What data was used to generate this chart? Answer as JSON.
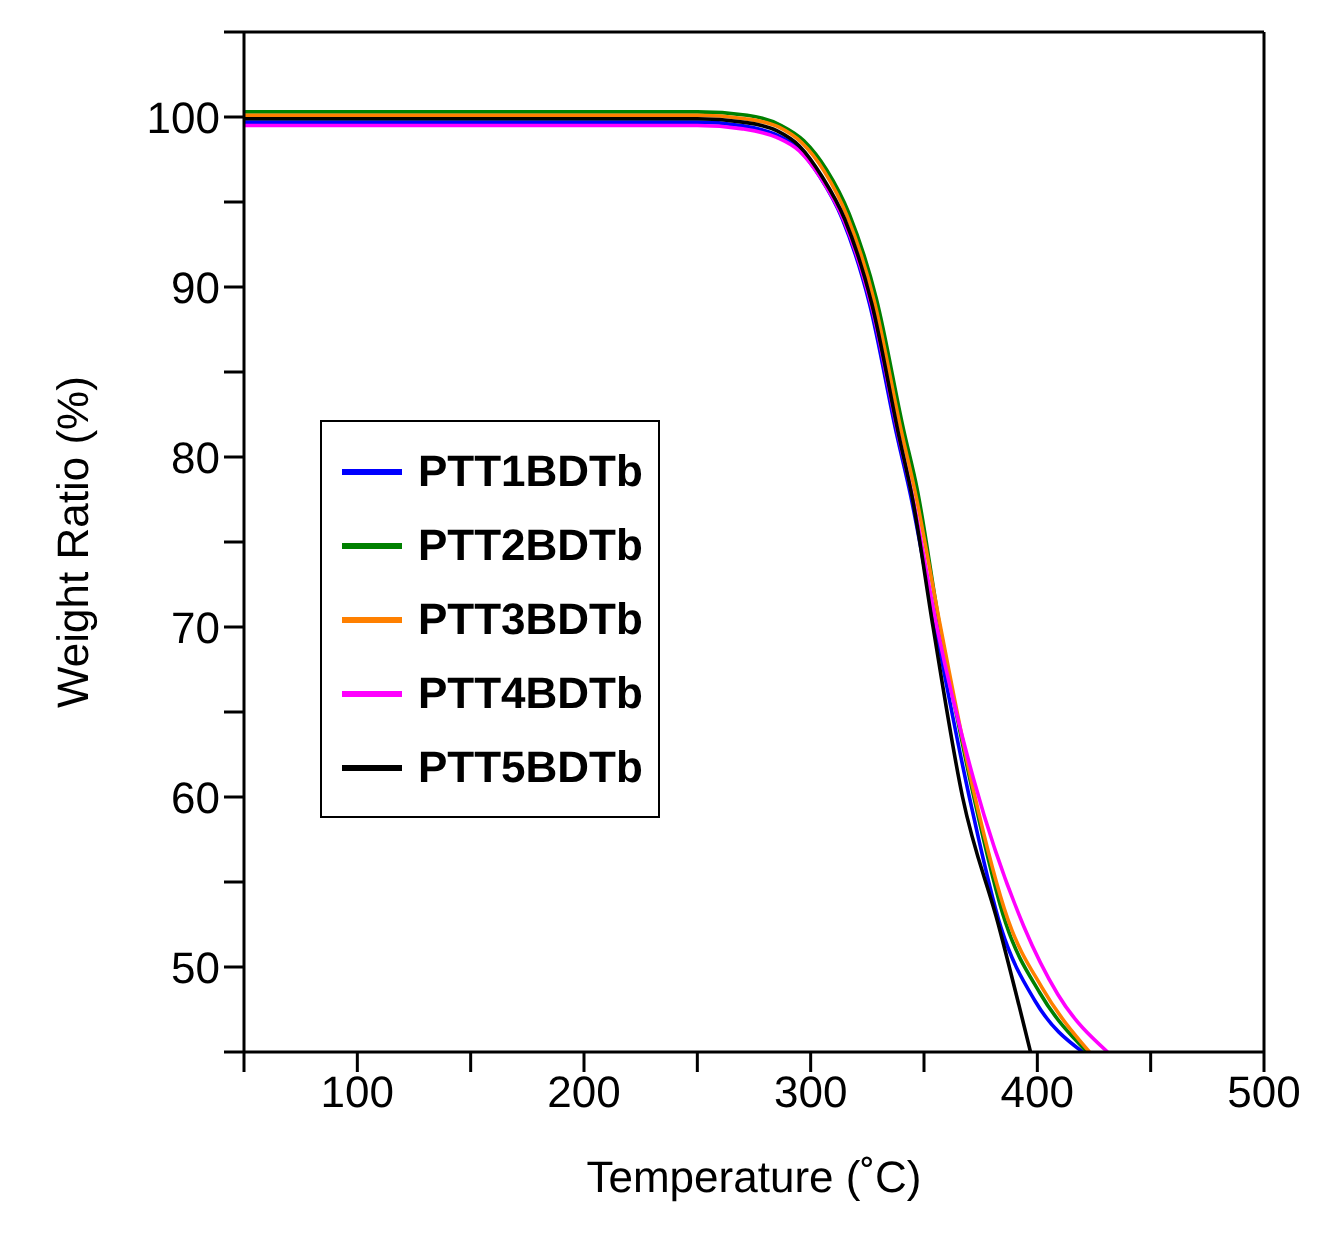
{
  "chart_data": {
    "type": "line",
    "xlabel": "Temperature (˚C)",
    "ylabel": "Weight Ratio (%)",
    "xlim": [
      50,
      500
    ],
    "ylim": [
      45,
      105
    ],
    "xticks": [
      {
        "value": 50,
        "label": null
      },
      100,
      {
        "value": 150,
        "label": null
      },
      200,
      {
        "value": 250,
        "label": null
      },
      300,
      {
        "value": 350,
        "label": null
      },
      400,
      {
        "value": 450,
        "label": null
      },
      500
    ],
    "yticks": [
      {
        "value": 45,
        "label": null
      },
      50,
      {
        "value": 55,
        "label": null
      },
      60,
      {
        "value": 65,
        "label": null
      },
      70,
      {
        "value": 75,
        "label": null
      },
      80,
      {
        "value": 85,
        "label": null
      },
      90,
      {
        "value": 95,
        "label": null
      },
      100,
      {
        "value": 105,
        "label": null
      }
    ],
    "legend": "left",
    "marker": "none",
    "line_style": "solid",
    "series": [
      {
        "name": "PTT1BDTb",
        "color": "#0000ff",
        "x": [
          50,
          150,
          250,
          269,
          284,
          294,
          304,
          314,
          326,
          338,
          344,
          355,
          370,
          384,
          399,
          420
        ],
        "values": [
          99.7,
          99.7,
          99.7,
          99.5,
          99,
          98.2,
          96.5,
          94,
          89,
          81.3,
          77.8,
          70,
          60,
          52.3,
          48,
          45
        ]
      },
      {
        "name": "PTT2BDTb",
        "color": "#008000",
        "x": [
          50,
          150,
          250,
          272,
          287,
          297,
          307,
          317,
          329,
          341,
          347,
          357,
          372,
          386,
          401,
          422
        ],
        "values": [
          100.3,
          100.3,
          100.3,
          100.1,
          99.5,
          98.6,
          96.9,
          94.3,
          89.3,
          81.6,
          78.1,
          70,
          60,
          52.6,
          48.5,
          45
        ]
      },
      {
        "name": "PTT3BDTb",
        "color": "#ff8000",
        "x": [
          50,
          150,
          250,
          271,
          286,
          296,
          306,
          316,
          328,
          340,
          346,
          357,
          372,
          387,
          402,
          423
        ],
        "values": [
          100.1,
          100.1,
          100.1,
          99.9,
          99.4,
          98.5,
          96.8,
          94.2,
          89.2,
          81.5,
          78,
          70.2,
          60.3,
          52.8,
          48.8,
          45
        ]
      },
      {
        "name": "PTT4BDTb",
        "color": "#ff00ff",
        "x": [
          50,
          150,
          250,
          270,
          285,
          295,
          305,
          315,
          327,
          339,
          345,
          356,
          372,
          394,
          409,
          431
        ],
        "values": [
          99.5,
          99.5,
          99.5,
          99.3,
          98.8,
          98,
          96.3,
          93.8,
          88.8,
          81.1,
          77.6,
          69.8,
          61,
          52.4,
          48.4,
          45
        ]
      },
      {
        "name": "PTT5BDTb",
        "color": "#000000",
        "x": [
          50,
          150,
          250,
          270,
          285,
          295,
          305,
          315,
          327,
          339,
          345,
          354,
          367,
          383,
          397
        ],
        "values": [
          99.9,
          99.9,
          99.9,
          99.7,
          99.2,
          98.3,
          96.5,
          94,
          89,
          81.2,
          77.5,
          70,
          60,
          52.4,
          45
        ]
      }
    ]
  }
}
